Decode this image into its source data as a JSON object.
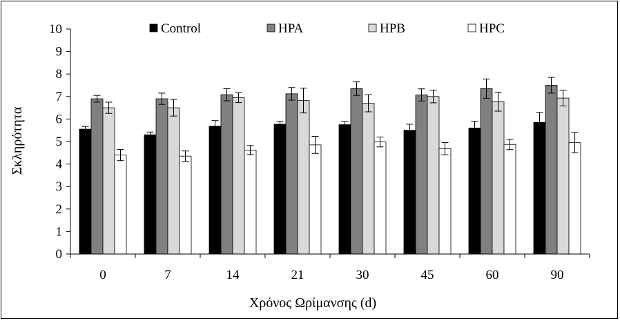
{
  "chart_data": {
    "type": "bar",
    "title": "",
    "xlabel": "Χρόνος Ωρίμανσης (d)",
    "ylabel": "Σκληρότητα",
    "ylim": [
      0,
      10
    ],
    "yticks": [
      0,
      1,
      2,
      3,
      4,
      5,
      6,
      7,
      8,
      9,
      10
    ],
    "grid": false,
    "legend_position": "top",
    "categories": [
      "0",
      "7",
      "14",
      "21",
      "30",
      "45",
      "60",
      "90"
    ],
    "series": [
      {
        "name": "Control",
        "color": "#000000",
        "values": [
          5.55,
          5.3,
          5.68,
          5.77,
          5.75,
          5.5,
          5.6,
          5.85
        ],
        "errors": [
          0.12,
          0.12,
          0.25,
          0.12,
          0.13,
          0.27,
          0.3,
          0.45
        ]
      },
      {
        "name": "HPA",
        "color": "#808080",
        "values": [
          6.9,
          6.9,
          7.08,
          7.12,
          7.35,
          7.07,
          7.35,
          7.5
        ],
        "errors": [
          0.15,
          0.25,
          0.27,
          0.28,
          0.3,
          0.27,
          0.43,
          0.35
        ]
      },
      {
        "name": "HPB",
        "color": "#d9d9d9",
        "values": [
          6.5,
          6.5,
          6.95,
          6.82,
          6.7,
          7.0,
          6.77,
          6.93
        ],
        "errors": [
          0.25,
          0.37,
          0.22,
          0.55,
          0.38,
          0.28,
          0.42,
          0.35
        ]
      },
      {
        "name": "HPC",
        "color": "#ffffff",
        "values": [
          4.4,
          4.35,
          4.62,
          4.85,
          4.98,
          4.68,
          4.87,
          4.95
        ],
        "errors": [
          0.25,
          0.23,
          0.2,
          0.38,
          0.22,
          0.27,
          0.23,
          0.45
        ]
      }
    ]
  }
}
